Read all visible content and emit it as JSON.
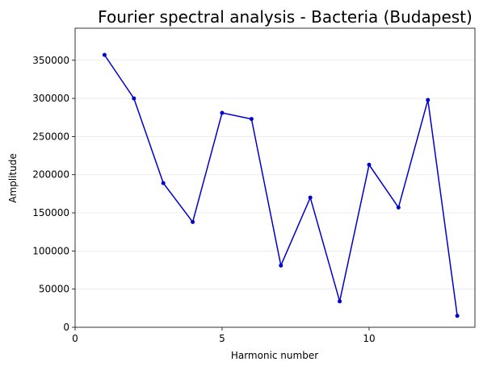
{
  "chart_data": {
    "type": "line",
    "title": "Fourier spectral analysis - Bacteria (Budapest)",
    "xlabel": "Harmonic number",
    "ylabel": "Amplitude",
    "xlim": [
      0,
      13.6
    ],
    "ylim": [
      0,
      392000
    ],
    "xticks": [
      0,
      5,
      10
    ],
    "yticks": [
      0,
      50000,
      100000,
      150000,
      200000,
      250000,
      300000,
      350000
    ],
    "grid": "horizontal",
    "series": [
      {
        "color": "#0000cc",
        "x": [
          1,
          2,
          3,
          4,
          5,
          6,
          7,
          8,
          9,
          10,
          11,
          12,
          13
        ],
        "y": [
          357000,
          300000,
          189000,
          138000,
          281000,
          273000,
          81000,
          170000,
          34000,
          213000,
          157000,
          298000,
          15000
        ]
      }
    ]
  }
}
